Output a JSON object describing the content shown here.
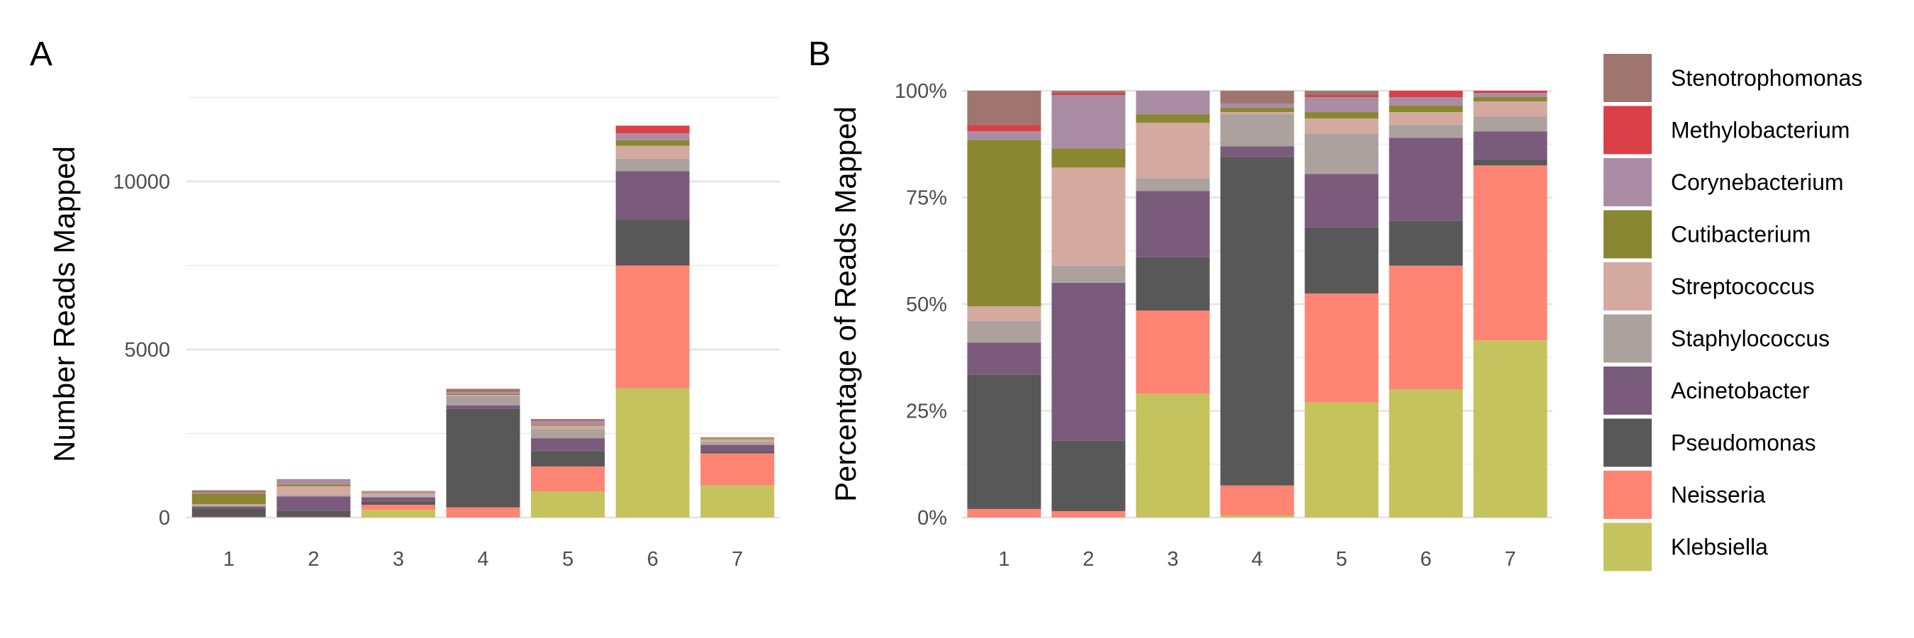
{
  "colors": {
    "Stenotrophomonas": "#9E766F",
    "Methylobacterium": "#D94048",
    "Corynebacterium": "#AB8CA5",
    "Cutibacterium": "#8A8732",
    "Streptococcus": "#D3A9A0",
    "Staphylococcus": "#ABA29E",
    "Acinetobacter": "#7B5B7C",
    "Pseudomonas": "#585858",
    "Neisseria": "#FE8473",
    "Klebsiella": "#C4C35E"
  },
  "chart_data": [
    {
      "panel": "A",
      "type": "bar",
      "stacked": true,
      "xlabel": "",
      "ylabel": "Number Reads Mapped",
      "ylim": [
        0,
        12700
      ],
      "yticks": [
        0,
        5000,
        10000
      ],
      "ytick_labels": [
        "0",
        "5000",
        "10000"
      ],
      "categories": [
        "1",
        "2",
        "3",
        "4",
        "5",
        "6",
        "7"
      ],
      "series": [
        {
          "name": "Klebsiella",
          "values": [
            0,
            0,
            230,
            0,
            780,
            3850,
            960
          ]
        },
        {
          "name": "Neisseria",
          "values": [
            15,
            15,
            150,
            300,
            740,
            3650,
            950
          ]
        },
        {
          "name": "Pseudomonas",
          "values": [
            250,
            190,
            100,
            2930,
            460,
            1350,
            50
          ]
        },
        {
          "name": "Acinetobacter",
          "values": [
            60,
            420,
            120,
            110,
            380,
            1460,
            200
          ]
        },
        {
          "name": "Staphylococcus",
          "values": [
            40,
            45,
            25,
            280,
            270,
            370,
            90
          ]
        },
        {
          "name": "Streptococcus",
          "values": [
            30,
            260,
            100,
            30,
            100,
            380,
            80
          ]
        },
        {
          "name": "Cutibacterium",
          "values": [
            320,
            50,
            15,
            30,
            30,
            170,
            30
          ]
        },
        {
          "name": "Corynebacterium",
          "values": [
            20,
            140,
            50,
            50,
            120,
            200,
            20
          ]
        },
        {
          "name": "Methylobacterium",
          "values": [
            10,
            5,
            0,
            5,
            20,
            230,
            5
          ]
        },
        {
          "name": "Stenotrophomonas",
          "values": [
            65,
            15,
            0,
            95,
            30,
            0,
            5
          ]
        }
      ]
    },
    {
      "panel": "B",
      "type": "bar",
      "stacked": true,
      "xlabel": "",
      "ylabel": "Percentage of Reads Mapped",
      "ylim": [
        0,
        100
      ],
      "yticks": [
        0,
        25,
        50,
        75,
        100
      ],
      "ytick_labels": [
        "0%",
        "25%",
        "50%",
        "75%",
        "100%"
      ],
      "categories": [
        "1",
        "2",
        "3",
        "4",
        "5",
        "6",
        "7"
      ],
      "series": [
        {
          "name": "Klebsiella",
          "values": [
            0,
            0,
            29,
            0.5,
            27,
            30,
            41.5
          ]
        },
        {
          "name": "Neisseria",
          "values": [
            2,
            1.5,
            19.5,
            7,
            25.5,
            29,
            41
          ]
        },
        {
          "name": "Pseudomonas",
          "values": [
            31.5,
            16.5,
            12.5,
            77,
            15.5,
            10.5,
            1.5
          ]
        },
        {
          "name": "Acinetobacter",
          "values": [
            7.5,
            37,
            15.5,
            2.5,
            12.5,
            19.5,
            6.5
          ]
        },
        {
          "name": "Staphylococcus",
          "values": [
            5,
            4,
            3,
            7.5,
            9.5,
            3,
            3.5
          ]
        },
        {
          "name": "Streptococcus",
          "values": [
            3.5,
            23,
            13,
            0.5,
            3.5,
            3,
            3.5
          ]
        },
        {
          "name": "Cutibacterium",
          "values": [
            39,
            4.5,
            2,
            1,
            1.5,
            1.5,
            1
          ]
        },
        {
          "name": "Corynebacterium",
          "values": [
            2,
            12.5,
            5.5,
            1,
            3.5,
            2,
            1
          ]
        },
        {
          "name": "Methylobacterium",
          "values": [
            1.5,
            0.5,
            0,
            0,
            0.5,
            1.5,
            0.5
          ]
        },
        {
          "name": "Stenotrophomonas",
          "values": [
            8,
            0.5,
            0,
            3,
            1,
            0,
            0
          ]
        }
      ]
    }
  ],
  "legend": {
    "placement": "right",
    "entries": [
      "Stenotrophomonas",
      "Methylobacterium",
      "Corynebacterium",
      "Cutibacterium",
      "Streptococcus",
      "Staphylococcus",
      "Acinetobacter",
      "Pseudomonas",
      "Neisseria",
      "Klebsiella"
    ]
  }
}
